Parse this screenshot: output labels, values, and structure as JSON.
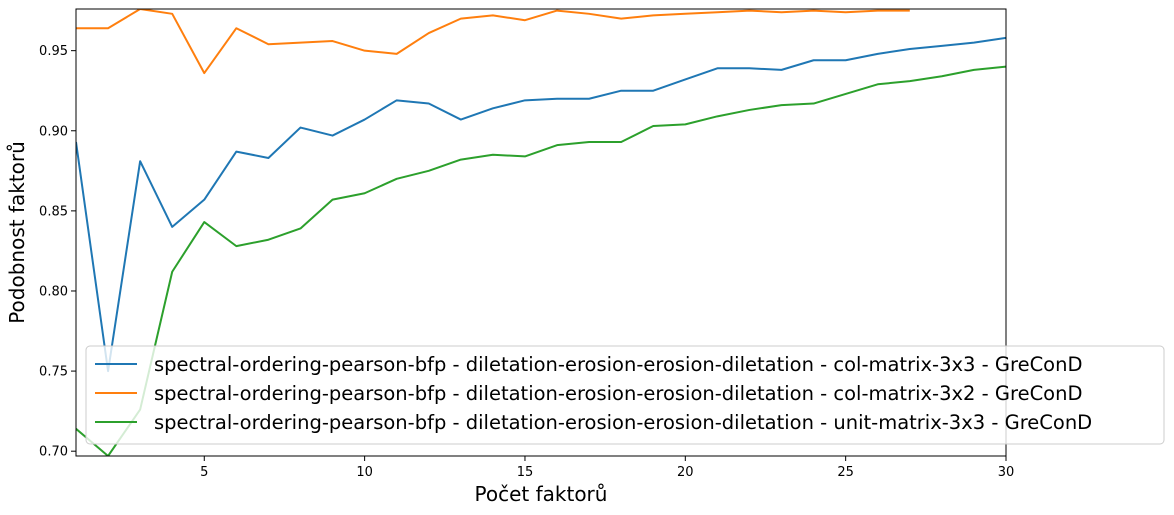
{
  "chart_data": {
    "type": "line",
    "title": "",
    "xlabel": "Počet faktorů",
    "ylabel": "Podobnost faktorů",
    "xlim": [
      1,
      30
    ],
    "ylim": [
      0.697,
      0.976
    ],
    "xticks": [
      5,
      10,
      15,
      20,
      25,
      30
    ],
    "yticks": [
      0.7,
      0.75,
      0.8,
      0.85,
      0.9,
      0.95
    ],
    "grid": false,
    "legend_position": "lower-right",
    "series": [
      {
        "name": "spectral-ordering-pearson-bfp - diletation-erosion-erosion-diletation - col-matrix-3x3 - GreConD",
        "color": "#1f77b4",
        "x": [
          1,
          2,
          3,
          4,
          5,
          6,
          7,
          8,
          9,
          10,
          11,
          12,
          13,
          14,
          15,
          16,
          17,
          18,
          19,
          20,
          21,
          22,
          23,
          24,
          25,
          26,
          27,
          28,
          29,
          30
        ],
        "y": [
          0.893,
          0.75,
          0.881,
          0.84,
          0.857,
          0.887,
          0.883,
          0.902,
          0.897,
          0.907,
          0.919,
          0.917,
          0.907,
          0.914,
          0.919,
          0.92,
          0.92,
          0.925,
          0.925,
          0.932,
          0.939,
          0.939,
          0.938,
          0.944,
          0.944,
          0.948,
          0.951,
          0.953,
          0.955,
          0.958
        ]
      },
      {
        "name": "spectral-ordering-pearson-bfp - diletation-erosion-erosion-diletation - col-matrix-3x2 - GreConD",
        "color": "#ff7f0e",
        "x": [
          1,
          2,
          3,
          4,
          5,
          6,
          7,
          8,
          9,
          10,
          11,
          12,
          13,
          14,
          15,
          16,
          17,
          18,
          19,
          20,
          21,
          22,
          23,
          24,
          25,
          26,
          27
        ],
        "y": [
          0.964,
          0.964,
          0.976,
          0.973,
          0.936,
          0.964,
          0.954,
          0.955,
          0.956,
          0.95,
          0.948,
          0.961,
          0.97,
          0.972,
          0.969,
          0.975,
          0.973,
          0.97,
          0.972,
          0.973,
          0.974,
          0.975,
          0.974,
          0.975,
          0.974,
          0.975,
          0.975
        ]
      },
      {
        "name": "spectral-ordering-pearson-bfp - diletation-erosion-erosion-diletation - unit-matrix-3x3 - GreConD",
        "color": "#2ca02c",
        "x": [
          1,
          2,
          3,
          4,
          5,
          6,
          7,
          8,
          9,
          10,
          11,
          12,
          13,
          14,
          15,
          16,
          17,
          18,
          19,
          20,
          21,
          22,
          23,
          24,
          25,
          26,
          27,
          28,
          29,
          30
        ],
        "y": [
          0.714,
          0.697,
          0.726,
          0.812,
          0.843,
          0.828,
          0.832,
          0.839,
          0.857,
          0.861,
          0.87,
          0.875,
          0.882,
          0.885,
          0.884,
          0.891,
          0.893,
          0.893,
          0.903,
          0.904,
          0.909,
          0.913,
          0.916,
          0.917,
          0.923,
          0.929,
          0.931,
          0.934,
          0.938,
          0.94
        ]
      }
    ]
  }
}
